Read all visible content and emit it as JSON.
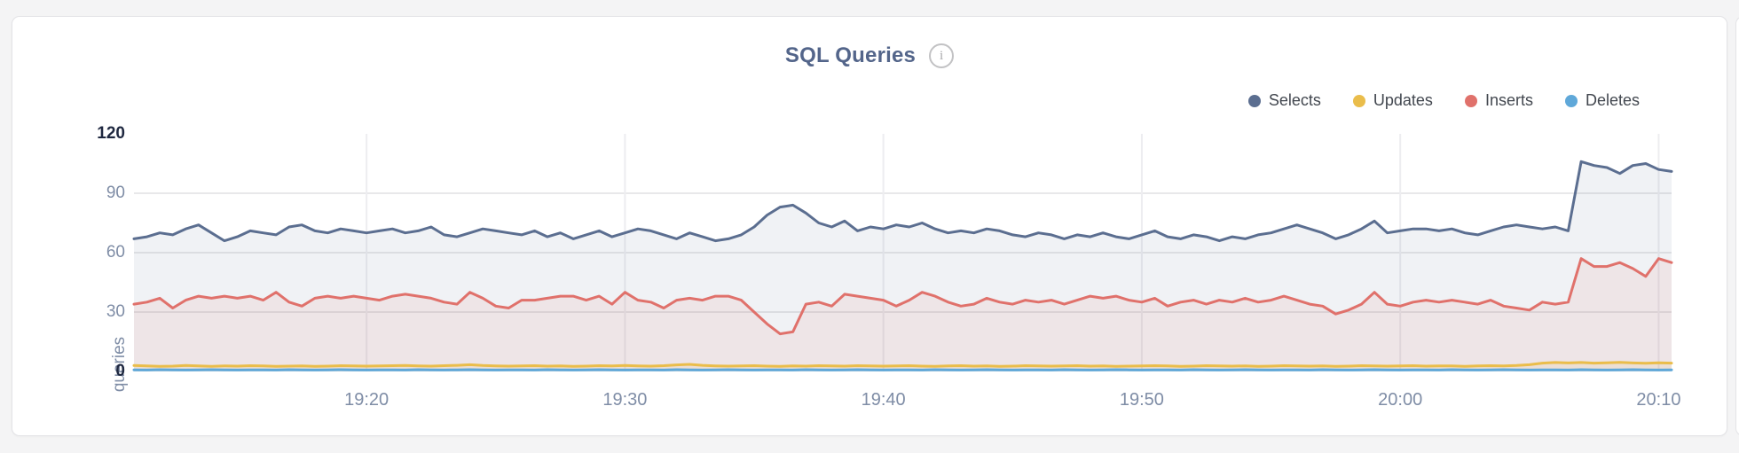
{
  "panel": {
    "title": "SQL Queries",
    "info_icon": "i"
  },
  "y_axis": {
    "label": "queries",
    "tick_values": [
      120,
      90,
      60,
      30,
      0
    ],
    "emphasized_ticks": [
      120,
      0
    ],
    "gridline_values": [
      90,
      60,
      30
    ]
  },
  "x_axis": {
    "tick_labels": [
      "19:20",
      "19:30",
      "19:40",
      "19:50",
      "20:00",
      "20:10"
    ],
    "tick_indices": [
      18,
      38,
      58,
      78,
      98,
      118
    ]
  },
  "colors": {
    "grid_horizontal": "#e8e8ea",
    "grid_vertical": "#ededf0",
    "tick_gray": "#7f8da6",
    "tick_dark": "#1f2840",
    "title": "#53658a"
  },
  "chart_data": {
    "type": "area",
    "title": "SQL Queries",
    "xlabel": "",
    "ylabel": "queries",
    "ylim": [
      0,
      120
    ],
    "x_start": "19:11:00",
    "x_end": "20:10:30",
    "interval_seconds": 30,
    "grid": true,
    "legend_position": "top-right",
    "x_tick_labels": [
      "19:20",
      "19:30",
      "19:40",
      "19:50",
      "20:00",
      "20:10"
    ],
    "series": [
      {
        "name": "Selects",
        "color": "#5b6e90",
        "fill": "rgba(91,110,144,0.09)",
        "values": [
          67,
          68,
          70,
          69,
          72,
          74,
          70,
          66,
          68,
          71,
          70,
          69,
          73,
          74,
          71,
          70,
          72,
          71,
          70,
          71,
          72,
          70,
          71,
          73,
          69,
          68,
          70,
          72,
          71,
          70,
          69,
          71,
          68,
          70,
          67,
          69,
          71,
          68,
          70,
          72,
          71,
          69,
          67,
          70,
          68,
          66,
          67,
          69,
          73,
          79,
          83,
          84,
          80,
          75,
          73,
          76,
          71,
          73,
          72,
          74,
          73,
          75,
          72,
          70,
          71,
          70,
          72,
          71,
          69,
          68,
          70,
          69,
          67,
          69,
          68,
          70,
          68,
          67,
          69,
          71,
          68,
          67,
          69,
          68,
          66,
          68,
          67,
          69,
          70,
          72,
          74,
          72,
          70,
          67,
          69,
          72,
          76,
          70,
          71,
          72,
          72,
          71,
          72,
          70,
          69,
          71,
          73,
          74,
          73,
          72,
          73,
          71,
          106,
          104,
          103,
          100,
          104,
          105,
          102,
          101
        ]
      },
      {
        "name": "Updates",
        "color": "#eabd4b",
        "fill": "rgba(234,189,75,0.12)",
        "values": [
          3,
          2.8,
          2.6,
          2.7,
          3,
          2.8,
          2.6,
          2.8,
          2.7,
          2.9,
          2.8,
          2.6,
          2.7,
          2.8,
          2.6,
          2.7,
          2.9,
          2.8,
          2.7,
          2.8,
          2.9,
          3,
          2.8,
          2.7,
          2.9,
          3.1,
          3.4,
          3,
          2.8,
          2.7,
          2.8,
          2.9,
          2.7,
          2.8,
          2.6,
          2.7,
          2.9,
          2.8,
          3,
          2.8,
          2.7,
          2.9,
          3.3,
          3.6,
          3.1,
          2.8,
          2.7,
          2.8,
          2.9,
          2.7,
          2.6,
          2.8,
          2.7,
          2.9,
          2.8,
          2.7,
          2.9,
          2.8,
          2.7,
          2.8,
          2.9,
          2.7,
          2.6,
          2.8,
          2.9,
          2.7,
          2.8,
          2.6,
          2.7,
          2.9,
          2.8,
          2.7,
          2.8,
          2.9,
          2.7,
          2.8,
          2.6,
          2.7,
          2.8,
          2.9,
          2.8,
          2.6,
          2.7,
          2.9,
          2.8,
          2.7,
          2.8,
          2.6,
          2.7,
          2.9,
          2.8,
          2.7,
          2.8,
          2.6,
          2.7,
          2.9,
          2.8,
          2.7,
          2.8,
          2.9,
          2.7,
          2.8,
          2.8,
          2.6,
          2.8,
          2.9,
          2.8,
          3,
          3.4,
          4.2,
          4.5,
          4.3,
          4.5,
          4.2,
          4.4,
          4.6,
          4.3,
          4.1,
          4.4,
          4.2
        ]
      },
      {
        "name": "Inserts",
        "color": "#e0716b",
        "fill": "rgba(224,113,107,0.10)",
        "values": [
          34,
          35,
          37,
          32,
          36,
          38,
          37,
          38,
          37,
          38,
          36,
          40,
          35,
          33,
          37,
          38,
          37,
          38,
          37,
          36,
          38,
          39,
          38,
          37,
          35,
          34,
          40,
          37,
          33,
          32,
          36,
          36,
          37,
          38,
          38,
          36,
          38,
          34,
          40,
          36,
          35,
          32,
          36,
          37,
          36,
          38,
          38,
          36,
          30,
          24,
          19,
          20,
          34,
          35,
          33,
          39,
          38,
          37,
          36,
          33,
          36,
          40,
          38,
          35,
          33,
          34,
          37,
          35,
          34,
          36,
          35,
          36,
          34,
          36,
          38,
          37,
          38,
          36,
          35,
          37,
          33,
          35,
          36,
          34,
          36,
          35,
          37,
          35,
          36,
          38,
          36,
          34,
          33,
          29,
          31,
          34,
          40,
          34,
          33,
          35,
          36,
          35,
          36,
          35,
          34,
          36,
          33,
          32,
          31,
          35,
          34,
          35,
          57,
          53,
          53,
          55,
          52,
          48,
          57,
          55
        ]
      },
      {
        "name": "Deletes",
        "color": "#5fa8d9",
        "fill": "rgba(95,168,217,0.15)",
        "values": [
          0.8,
          0.7,
          0.9,
          0.8,
          0.7,
          0.8,
          0.9,
          0.8,
          0.7,
          0.8,
          0.8,
          0.7,
          0.9,
          0.8,
          0.7,
          0.8,
          0.9,
          0.8,
          0.7,
          0.8,
          0.8,
          0.7,
          0.9,
          0.8,
          0.7,
          0.8,
          0.9,
          0.8,
          0.7,
          0.8,
          0.8,
          0.7,
          0.9,
          0.8,
          0.7,
          0.8,
          0.9,
          0.8,
          0.7,
          0.8,
          0.8,
          0.7,
          0.9,
          0.8,
          0.7,
          0.8,
          0.9,
          0.8,
          0.7,
          0.8,
          0.8,
          0.7,
          0.9,
          0.8,
          0.7,
          0.8,
          0.9,
          0.8,
          0.7,
          0.8,
          0.8,
          0.7,
          0.9,
          0.8,
          0.7,
          0.8,
          0.9,
          0.8,
          0.7,
          0.8,
          0.8,
          0.7,
          0.9,
          0.8,
          0.7,
          0.8,
          0.9,
          0.8,
          0.7,
          0.8,
          0.8,
          0.7,
          0.9,
          0.8,
          0.7,
          0.8,
          0.9,
          0.8,
          0.7,
          0.8,
          0.8,
          0.7,
          0.9,
          0.8,
          0.7,
          0.8,
          0.9,
          0.8,
          0.7,
          0.8,
          0.8,
          0.7,
          0.9,
          0.8,
          0.7,
          0.8,
          0.9,
          0.8,
          0.7,
          0.8,
          0.8,
          0.7,
          0.9,
          0.8,
          0.7,
          0.8,
          0.9,
          0.8,
          0.7,
          0.8
        ]
      }
    ]
  }
}
